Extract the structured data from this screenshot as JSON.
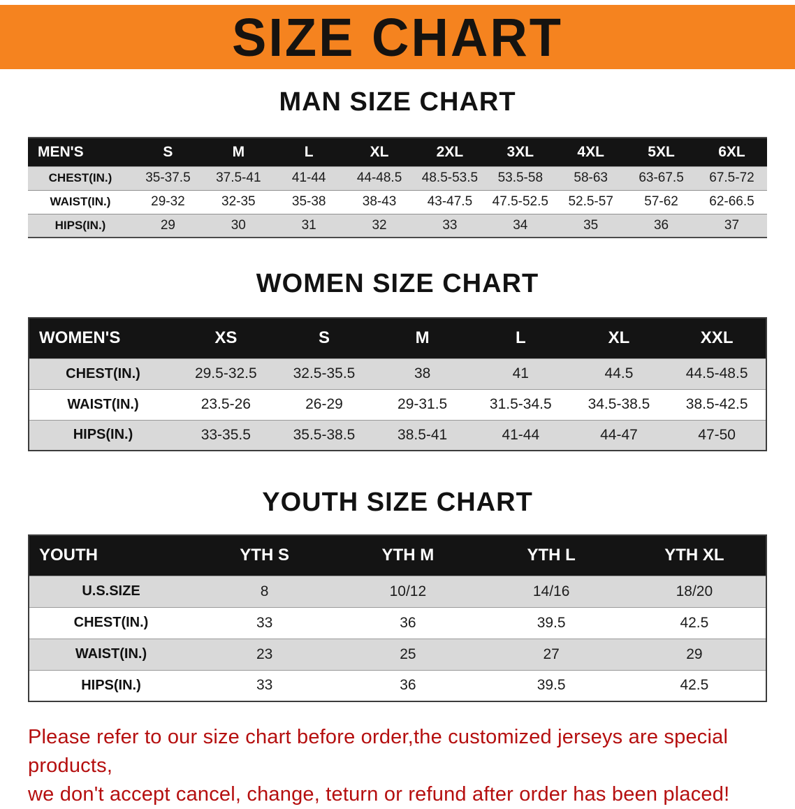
{
  "banner": {
    "title": "SIZE CHART",
    "background": "#f5831f"
  },
  "sections": [
    {
      "id": "men",
      "title": "MAN SIZE CHART",
      "corner": "MEN'S",
      "columns": [
        "S",
        "M",
        "L",
        "XL",
        "2XL",
        "3XL",
        "4XL",
        "5XL",
        "6XL"
      ],
      "rows": [
        {
          "label": "CHEST(IN.)",
          "values": [
            "35-37.5",
            "37.5-41",
            "41-44",
            "44-48.5",
            "48.5-53.5",
            "53.5-58",
            "58-63",
            "63-67.5",
            "67.5-72"
          ]
        },
        {
          "label": "WAIST(IN.)",
          "values": [
            "29-32",
            "32-35",
            "35-38",
            "38-43",
            "43-47.5",
            "47.5-52.5",
            "52.5-57",
            "57-62",
            "62-66.5"
          ]
        },
        {
          "label": "HIPS(IN.)",
          "values": [
            "29",
            "30",
            "31",
            "32",
            "33",
            "34",
            "35",
            "36",
            "37"
          ]
        }
      ]
    },
    {
      "id": "women",
      "title": "WOMEN SIZE CHART",
      "corner": "WOMEN'S",
      "columns": [
        "XS",
        "S",
        "M",
        "L",
        "XL",
        "XXL"
      ],
      "rows": [
        {
          "label": "CHEST(IN.)",
          "values": [
            "29.5-32.5",
            "32.5-35.5",
            "38",
            "41",
            "44.5",
            "44.5-48.5"
          ]
        },
        {
          "label": "WAIST(IN.)",
          "values": [
            "23.5-26",
            "26-29",
            "29-31.5",
            "31.5-34.5",
            "34.5-38.5",
            "38.5-42.5"
          ]
        },
        {
          "label": "HIPS(IN.)",
          "values": [
            "33-35.5",
            "35.5-38.5",
            "38.5-41",
            "41-44",
            "44-47",
            "47-50"
          ]
        }
      ]
    },
    {
      "id": "youth",
      "title": "YOUTH SIZE CHART",
      "corner": "YOUTH",
      "columns": [
        "YTH S",
        "YTH M",
        "YTH L",
        "YTH XL"
      ],
      "rows": [
        {
          "label": "U.S.SIZE",
          "values": [
            "8",
            "10/12",
            "14/16",
            "18/20"
          ]
        },
        {
          "label": "CHEST(IN.)",
          "values": [
            "33",
            "36",
            "39.5",
            "42.5"
          ]
        },
        {
          "label": "WAIST(IN.)",
          "values": [
            "23",
            "25",
            "27",
            "29"
          ]
        },
        {
          "label": "HIPS(IN.)",
          "values": [
            "33",
            "36",
            "39.5",
            "42.5"
          ]
        }
      ]
    }
  ],
  "footer": {
    "color": "#b50f0f",
    "line1": "Please refer to our size chart before order,the customized jerseys are special products,",
    "line2": "we don't accept cancel, change, teturn or refund after order has been placed!"
  }
}
